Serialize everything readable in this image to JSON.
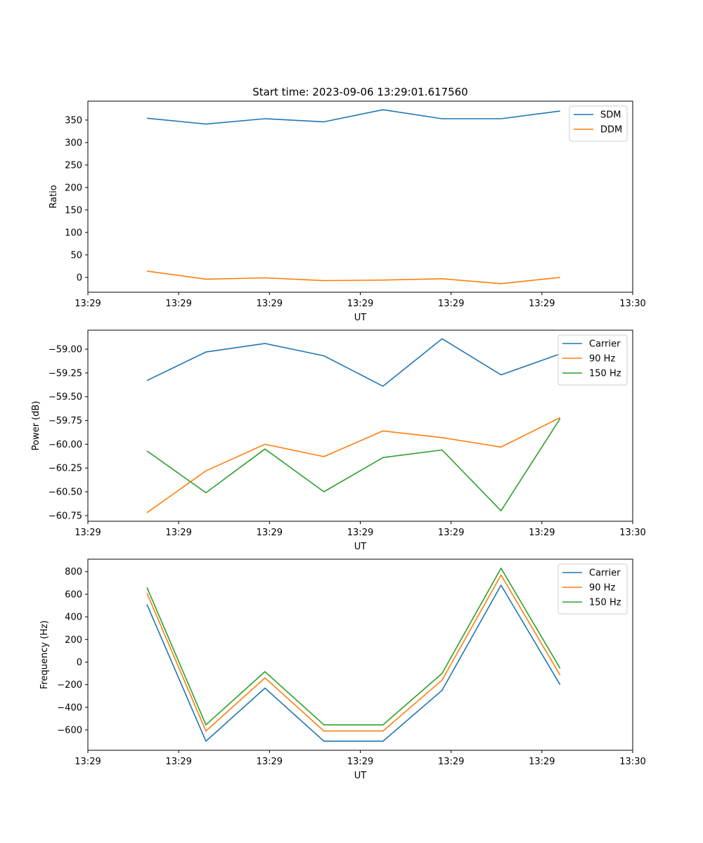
{
  "figure_title": "Start time: 2023-09-06 13:29:01.617560",
  "chart_data": [
    {
      "type": "line",
      "title": "Start time: 2023-09-06 13:29:01.617560",
      "xlabel": "UT",
      "ylabel": "Ratio",
      "x": [
        0.65,
        1.3,
        1.95,
        2.6,
        3.25,
        3.9,
        4.55,
        5.2
      ],
      "xlim": [
        0.0,
        6.0
      ],
      "x_ticks": [
        0,
        1,
        2,
        3,
        4,
        5,
        6
      ],
      "x_tick_labels": [
        "13:29",
        "13:29",
        "13:29",
        "13:29",
        "13:29",
        "13:29",
        "13:30"
      ],
      "ylim": [
        -33,
        392
      ],
      "y_ticks": [
        0,
        50,
        100,
        150,
        200,
        250,
        300,
        350
      ],
      "y_tick_labels": [
        "0",
        "50",
        "100",
        "150",
        "200",
        "250",
        "300",
        "350"
      ],
      "legend_position": "top-right",
      "series": [
        {
          "name": "SDM",
          "color": "#1f77b4",
          "values": [
            354,
            341,
            353,
            346,
            373,
            353,
            353,
            370
          ]
        },
        {
          "name": "DDM",
          "color": "#ff7f0e",
          "values": [
            14,
            -4,
            -1,
            -7,
            -6,
            -3,
            -14,
            0
          ]
        }
      ]
    },
    {
      "type": "line",
      "title": "",
      "xlabel": "UT",
      "ylabel": "Power (dB)",
      "x": [
        0.65,
        1.3,
        1.95,
        2.6,
        3.25,
        3.9,
        4.55,
        5.2
      ],
      "xlim": [
        0.0,
        6.0
      ],
      "x_ticks": [
        0,
        1,
        2,
        3,
        4,
        5,
        6
      ],
      "x_tick_labels": [
        "13:29",
        "13:29",
        "13:29",
        "13:29",
        "13:29",
        "13:29",
        "13:30"
      ],
      "ylim": [
        -60.81,
        -58.8
      ],
      "y_ticks": [
        -59.0,
        -59.25,
        -59.5,
        -59.75,
        -60.0,
        -60.25,
        -60.5,
        -60.75
      ],
      "y_tick_labels": [
        "−59.00",
        "−59.25",
        "−59.50",
        "−59.75",
        "−60.00",
        "−60.25",
        "−60.50",
        "−60.75"
      ],
      "legend_position": "top-right",
      "series": [
        {
          "name": "Carrier",
          "color": "#1f77b4",
          "values": [
            -59.33,
            -59.03,
            -58.94,
            -59.07,
            -59.39,
            -58.89,
            -59.27,
            -59.05
          ]
        },
        {
          "name": "90 Hz",
          "color": "#ff7f0e",
          "values": [
            -60.72,
            -60.28,
            -60.0,
            -60.13,
            -59.86,
            -59.93,
            -60.03,
            -59.72
          ]
        },
        {
          "name": "150 Hz",
          "color": "#2ca02c",
          "values": [
            -60.07,
            -60.51,
            -60.05,
            -60.5,
            -60.14,
            -60.06,
            -60.7,
            -59.73
          ]
        }
      ]
    },
    {
      "type": "line",
      "title": "",
      "xlabel": "UT",
      "ylabel": "Frequency (Hz)",
      "x": [
        0.65,
        1.3,
        1.95,
        2.6,
        3.25,
        3.9,
        4.55,
        5.2
      ],
      "xlim": [
        0.0,
        6.0
      ],
      "x_ticks": [
        0,
        1,
        2,
        3,
        4,
        5,
        6
      ],
      "x_tick_labels": [
        "13:29",
        "13:29",
        "13:29",
        "13:29",
        "13:29",
        "13:29",
        "13:30"
      ],
      "ylim": [
        -780,
        910
      ],
      "y_ticks": [
        800,
        600,
        400,
        200,
        0,
        -200,
        -400,
        -600
      ],
      "y_tick_labels": [
        "800",
        "600",
        "400",
        "200",
        "0",
        "−200",
        "−400",
        "−600"
      ],
      "legend_position": "top-right",
      "series": [
        {
          "name": "Carrier",
          "color": "#1f77b4",
          "values": [
            510,
            -700,
            -230,
            -700,
            -700,
            -250,
            680,
            -200
          ]
        },
        {
          "name": "90 Hz",
          "color": "#ff7f0e",
          "values": [
            610,
            -610,
            -140,
            -610,
            -610,
            -160,
            770,
            -115
          ]
        },
        {
          "name": "150 Hz",
          "color": "#2ca02c",
          "values": [
            660,
            -555,
            -85,
            -555,
            -555,
            -100,
            830,
            -55
          ]
        }
      ]
    }
  ]
}
